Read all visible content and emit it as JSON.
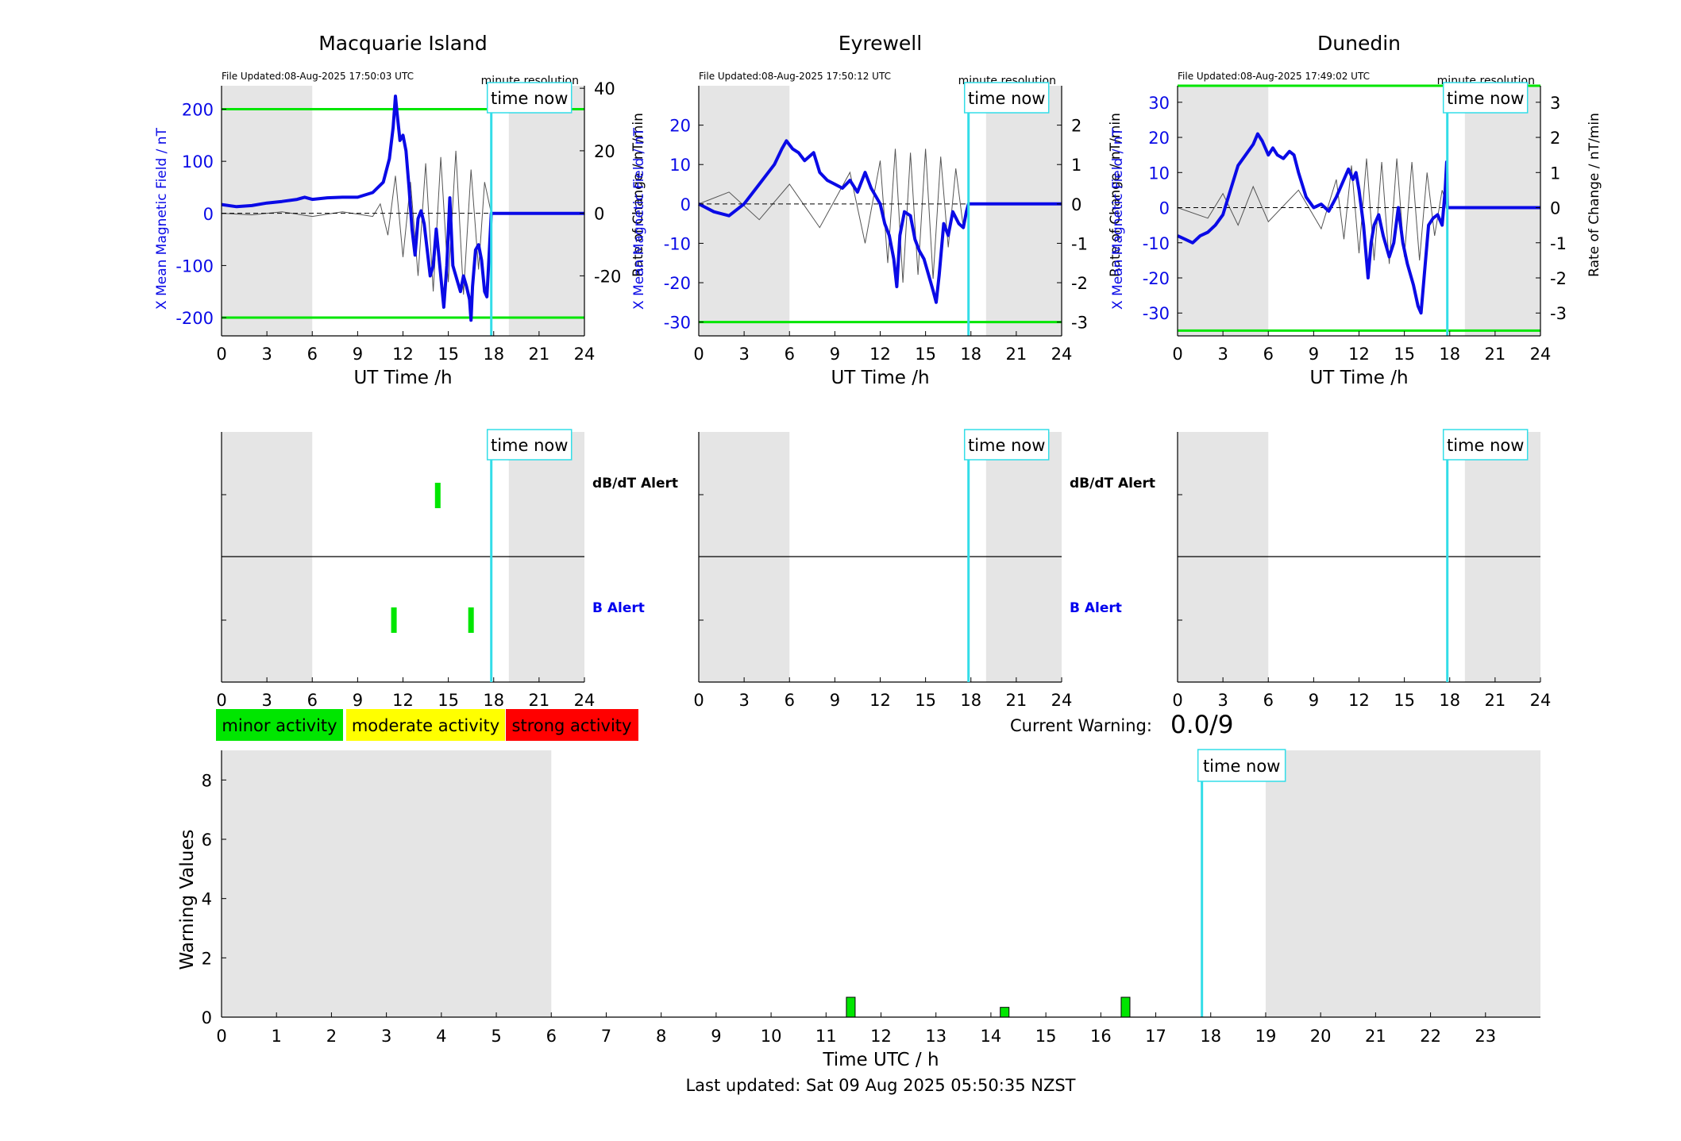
{
  "colors": {
    "shade": "#e5e5e5",
    "field_line": "#0a0ae6",
    "rate_line": "#555555",
    "threshold": "#00e600",
    "time_now": "#33dde8",
    "minor": "#00e600",
    "moderate": "#ffff00",
    "strong": "#ff0000",
    "b_alert_label": "#0000ee"
  },
  "icons": {
    "time_now_marker": "cyan-vertical-line"
  },
  "stations": [
    {
      "name": "Macquarie Island",
      "file_updated": "File Updated:08-Aug-2025 17:50:03 UTC",
      "resolution": "minute resolution",
      "time_now_label": "time now",
      "xlabel": "UT Time /h",
      "ylabel_left": "X Mean Magnetic Field / nT",
      "ylabel_right": "Rate of Change / nT/min",
      "xlim": [
        0,
        24
      ],
      "ylim_left": [
        -235,
        245
      ],
      "ylim_right": [
        -39.2,
        40.8
      ],
      "left_ticks": [
        200,
        100,
        0,
        -100,
        -200
      ],
      "right_ticks": [
        40,
        20,
        0,
        -20
      ],
      "thresholds": [
        200,
        -200
      ],
      "time_now": 17.84,
      "shade_nights": [
        [
          0,
          6
        ],
        [
          19,
          24
        ]
      ],
      "field": [
        [
          0,
          17
        ],
        [
          1,
          13
        ],
        [
          2,
          15
        ],
        [
          3,
          20
        ],
        [
          4,
          23
        ],
        [
          5,
          27
        ],
        [
          5.5,
          31
        ],
        [
          6,
          27
        ],
        [
          7,
          30
        ],
        [
          8,
          31
        ],
        [
          9,
          31
        ],
        [
          10,
          40
        ],
        [
          10.7,
          60
        ],
        [
          11.1,
          105
        ],
        [
          11.35,
          165
        ],
        [
          11.5,
          225
        ],
        [
          11.6,
          195
        ],
        [
          11.8,
          140
        ],
        [
          12.0,
          150
        ],
        [
          12.2,
          120
        ],
        [
          12.4,
          50
        ],
        [
          12.6,
          -30
        ],
        [
          12.8,
          -80
        ],
        [
          13.0,
          -10
        ],
        [
          13.2,
          5
        ],
        [
          13.4,
          -20
        ],
        [
          13.6,
          -70
        ],
        [
          13.8,
          -120
        ],
        [
          14.0,
          -100
        ],
        [
          14.2,
          -30
        ],
        [
          14.5,
          -120
        ],
        [
          14.7,
          -180
        ],
        [
          14.9,
          -100
        ],
        [
          15.1,
          30
        ],
        [
          15.3,
          -100
        ],
        [
          15.6,
          -130
        ],
        [
          15.8,
          -150
        ],
        [
          16.0,
          -120
        ],
        [
          16.2,
          -140
        ],
        [
          16.4,
          -165
        ],
        [
          16.5,
          -205
        ],
        [
          16.6,
          -140
        ],
        [
          16.8,
          -70
        ],
        [
          17.0,
          -60
        ],
        [
          17.2,
          -90
        ],
        [
          17.4,
          -150
        ],
        [
          17.55,
          -160
        ],
        [
          17.84,
          0
        ],
        [
          24,
          0
        ]
      ],
      "rate": [
        [
          0,
          0
        ],
        [
          2,
          -0.5
        ],
        [
          4,
          0.5
        ],
        [
          6,
          -1
        ],
        [
          8,
          0.5
        ],
        [
          10,
          -1
        ],
        [
          10.5,
          3
        ],
        [
          11,
          -7
        ],
        [
          11.5,
          12
        ],
        [
          12,
          -14
        ],
        [
          12.5,
          10
        ],
        [
          13,
          -20
        ],
        [
          13.5,
          16
        ],
        [
          14,
          -25
        ],
        [
          14.5,
          18
        ],
        [
          15,
          -22
        ],
        [
          15.5,
          20
        ],
        [
          16,
          -26
        ],
        [
          16.5,
          14
        ],
        [
          17,
          -18
        ],
        [
          17.4,
          10
        ],
        [
          17.84,
          0
        ],
        [
          24,
          0
        ]
      ],
      "alerts_dbdt": [
        14.3
      ],
      "alerts_b": [
        11.4,
        16.5
      ]
    },
    {
      "name": "Eyrewell",
      "file_updated": "File Updated:08-Aug-2025 17:50:12 UTC",
      "resolution": "minute resolution",
      "time_now_label": "time now",
      "xlabel": "UT Time /h",
      "ylabel_left": "X Mean Magnetic Field / nT",
      "ylabel_right": "Rate of Change / nT/min",
      "xlim": [
        0,
        24
      ],
      "ylim_left": [
        -33.5,
        30
      ],
      "ylim_right": [
        -3.35,
        3.0
      ],
      "left_ticks": [
        20,
        10,
        0,
        -10,
        -20,
        -30
      ],
      "right_ticks": [
        2,
        1,
        0,
        -1,
        -2,
        -3
      ],
      "thresholds": [
        -30
      ],
      "time_now": 17.84,
      "shade_nights": [
        [
          0,
          6
        ],
        [
          19,
          24
        ]
      ],
      "field": [
        [
          0,
          0
        ],
        [
          1,
          -2
        ],
        [
          2,
          -3
        ],
        [
          3,
          0
        ],
        [
          4,
          5
        ],
        [
          5,
          10
        ],
        [
          5.5,
          14
        ],
        [
          5.8,
          16
        ],
        [
          6.2,
          14
        ],
        [
          6.6,
          13
        ],
        [
          7,
          11
        ],
        [
          7.6,
          13
        ],
        [
          8,
          8
        ],
        [
          8.5,
          6
        ],
        [
          9,
          5
        ],
        [
          9.5,
          4
        ],
        [
          10,
          6
        ],
        [
          10.5,
          3
        ],
        [
          11,
          8
        ],
        [
          11.4,
          4
        ],
        [
          11.7,
          2
        ],
        [
          12,
          0
        ],
        [
          12.3,
          -5
        ],
        [
          12.6,
          -8
        ],
        [
          12.9,
          -14
        ],
        [
          13.1,
          -21
        ],
        [
          13.3,
          -8
        ],
        [
          13.6,
          -2
        ],
        [
          14,
          -3
        ],
        [
          14.3,
          -9
        ],
        [
          14.6,
          -12
        ],
        [
          14.9,
          -14
        ],
        [
          15.2,
          -18
        ],
        [
          15.5,
          -22
        ],
        [
          15.7,
          -25
        ],
        [
          15.9,
          -18
        ],
        [
          16.2,
          -5
        ],
        [
          16.5,
          -8
        ],
        [
          16.8,
          -2
        ],
        [
          17.2,
          -5
        ],
        [
          17.5,
          -6
        ],
        [
          17.7,
          -2
        ],
        [
          17.84,
          0
        ],
        [
          24,
          0
        ]
      ],
      "rate": [
        [
          0,
          0
        ],
        [
          2,
          0.3
        ],
        [
          4,
          -0.4
        ],
        [
          6,
          0.5
        ],
        [
          8,
          -0.6
        ],
        [
          10,
          0.8
        ],
        [
          11,
          -1.0
        ],
        [
          12,
          1.1
        ],
        [
          12.5,
          -1.5
        ],
        [
          13,
          1.4
        ],
        [
          13.5,
          -2.0
        ],
        [
          14,
          1.3
        ],
        [
          14.5,
          -1.8
        ],
        [
          15,
          1.4
        ],
        [
          15.5,
          -1.9
        ],
        [
          16,
          1.2
        ],
        [
          16.5,
          -1.1
        ],
        [
          17,
          0.9
        ],
        [
          17.5,
          -0.6
        ],
        [
          17.84,
          0
        ],
        [
          24,
          0
        ]
      ],
      "alerts_dbdt": [],
      "alerts_b": []
    },
    {
      "name": "Dunedin",
      "file_updated": "File Updated:08-Aug-2025 17:49:02 UTC",
      "resolution": "minute resolution",
      "time_now_label": "time now",
      "xlabel": "UT Time /h",
      "ylabel_left": "X Mean Magnetic Field / nT",
      "ylabel_right": "Rate of Change / nT/min",
      "xlim": [
        0,
        24
      ],
      "ylim_left": [
        -36.5,
        34.7
      ],
      "ylim_right": [
        -3.65,
        3.47
      ],
      "left_ticks": [
        30,
        20,
        10,
        0,
        -10,
        -20,
        -30
      ],
      "right_ticks": [
        3,
        2,
        1,
        0,
        -1,
        -2,
        -3
      ],
      "thresholds": [
        34.7,
        -35
      ],
      "time_now": 17.84,
      "shade_nights": [
        [
          0,
          6
        ],
        [
          19,
          24
        ]
      ],
      "field": [
        [
          0,
          -8
        ],
        [
          0.5,
          -9
        ],
        [
          1,
          -10
        ],
        [
          1.5,
          -8
        ],
        [
          2,
          -7
        ],
        [
          2.5,
          -5
        ],
        [
          3,
          -2
        ],
        [
          3.5,
          5
        ],
        [
          4,
          12
        ],
        [
          4.5,
          15
        ],
        [
          5,
          18
        ],
        [
          5.3,
          21
        ],
        [
          5.6,
          19
        ],
        [
          6,
          15
        ],
        [
          6.3,
          17
        ],
        [
          6.6,
          15
        ],
        [
          7,
          14
        ],
        [
          7.4,
          16
        ],
        [
          7.7,
          15
        ],
        [
          8,
          10
        ],
        [
          8.5,
          3
        ],
        [
          9,
          0
        ],
        [
          9.5,
          1
        ],
        [
          10,
          -1
        ],
        [
          10.5,
          3
        ],
        [
          11,
          8
        ],
        [
          11.3,
          11
        ],
        [
          11.6,
          8
        ],
        [
          11.8,
          10
        ],
        [
          12,
          5
        ],
        [
          12.3,
          -5
        ],
        [
          12.6,
          -20
        ],
        [
          12.8,
          -10
        ],
        [
          13,
          -5
        ],
        [
          13.3,
          -2
        ],
        [
          13.6,
          -8
        ],
        [
          14,
          -14
        ],
        [
          14.3,
          -10
        ],
        [
          14.6,
          0
        ],
        [
          14.9,
          -10
        ],
        [
          15.2,
          -16
        ],
        [
          15.6,
          -22
        ],
        [
          15.9,
          -28
        ],
        [
          16.1,
          -30
        ],
        [
          16.3,
          -20
        ],
        [
          16.6,
          -5
        ],
        [
          16.9,
          -3
        ],
        [
          17.2,
          -2
        ],
        [
          17.5,
          -5
        ],
        [
          17.7,
          5
        ],
        [
          17.8,
          13
        ],
        [
          17.84,
          0
        ],
        [
          24,
          0
        ]
      ],
      "rate": [
        [
          0,
          0
        ],
        [
          2,
          -0.3
        ],
        [
          3,
          0.4
        ],
        [
          4,
          -0.5
        ],
        [
          5,
          0.6
        ],
        [
          6,
          -0.4
        ],
        [
          8,
          0.5
        ],
        [
          9.5,
          -0.6
        ],
        [
          10.5,
          0.8
        ],
        [
          11,
          -0.9
        ],
        [
          11.5,
          1.2
        ],
        [
          12,
          -1.3
        ],
        [
          12.5,
          1.4
        ],
        [
          13,
          -1.5
        ],
        [
          13.5,
          1.3
        ],
        [
          14,
          -1.6
        ],
        [
          14.5,
          1.4
        ],
        [
          15,
          -1.4
        ],
        [
          15.5,
          1.3
        ],
        [
          16,
          -1.5
        ],
        [
          16.5,
          1.0
        ],
        [
          17,
          -0.8
        ],
        [
          17.5,
          0.5
        ],
        [
          17.84,
          0
        ],
        [
          24,
          0
        ]
      ],
      "alerts_dbdt": [],
      "alerts_b": []
    }
  ],
  "alert_panel": {
    "dbdt_label": "dB/dT Alert",
    "b_label": "B Alert",
    "time_now_label": "time now"
  },
  "legend": {
    "minor": "minor activity",
    "moderate": "moderate activity",
    "strong": "strong activity"
  },
  "current_warning": {
    "label": "Current Warning:",
    "value": "0.0/9"
  },
  "chart_data": [
    {
      "type": "line",
      "title": "Macquarie Island",
      "xlabel": "UT Time /h",
      "ylabel": "X Mean Magnetic Field / nT",
      "y2label": "Rate of Change / nT/min",
      "series": [
        {
          "name": "X Mean Magnetic Field / nT",
          "axis": "left"
        },
        {
          "name": "Rate of Change / nT/min",
          "axis": "right"
        }
      ]
    },
    {
      "type": "line",
      "title": "Eyrewell",
      "xlabel": "UT Time /h",
      "ylabel": "X Mean Magnetic Field / nT",
      "y2label": "Rate of Change / nT/min",
      "series": [
        {
          "name": "X Mean Magnetic Field / nT",
          "axis": "left"
        },
        {
          "name": "Rate of Change / nT/min",
          "axis": "right"
        }
      ]
    },
    {
      "type": "line",
      "title": "Dunedin",
      "xlabel": "UT Time /h",
      "ylabel": "X Mean Magnetic Field / nT",
      "y2label": "Rate of Change / nT/min",
      "series": [
        {
          "name": "X Mean Magnetic Field / nT",
          "axis": "left"
        },
        {
          "name": "Rate of Change / nT/min",
          "axis": "right"
        }
      ]
    },
    {
      "type": "bar",
      "xlabel": "Time UTC / h",
      "ylabel": "Warning Values",
      "xlim": [
        0,
        24
      ],
      "ylim": [
        0,
        9
      ],
      "yticks": [
        0,
        2,
        4,
        6,
        8
      ],
      "xticks": [
        0,
        1,
        2,
        3,
        4,
        5,
        6,
        7,
        8,
        9,
        10,
        11,
        12,
        13,
        14,
        15,
        16,
        17,
        18,
        19,
        20,
        21,
        22,
        23
      ],
      "time_now": 17.84,
      "time_now_label": "time now",
      "shade_nights": [
        [
          0,
          6
        ],
        [
          19,
          24
        ]
      ],
      "bars": [
        {
          "x": 11.45,
          "value": 0.67,
          "level": "minor"
        },
        {
          "x": 14.25,
          "value": 0.33,
          "level": "minor"
        },
        {
          "x": 16.45,
          "value": 0.67,
          "level": "minor"
        }
      ]
    }
  ],
  "footer": {
    "last_updated": "Last updated: Sat 09 Aug 2025 05:50:35 NZST"
  }
}
